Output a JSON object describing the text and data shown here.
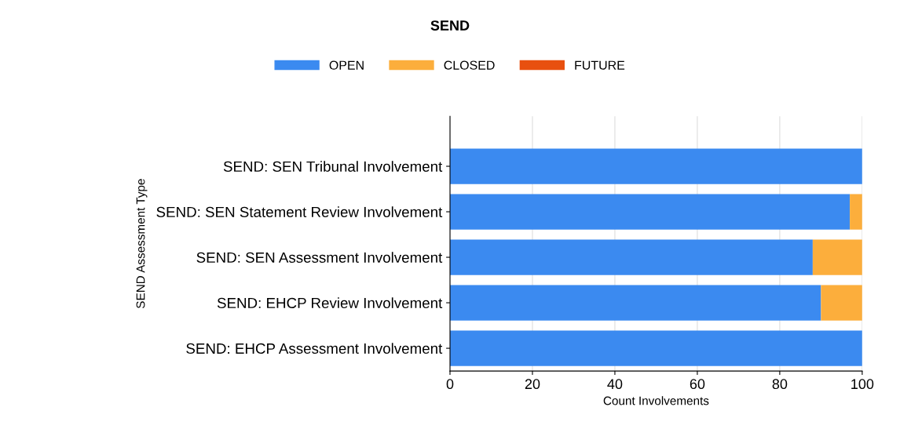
{
  "chart_data": {
    "type": "bar",
    "orientation": "horizontal",
    "stacked": true,
    "title": "SEND",
    "xlabel": "Count Involvements",
    "ylabel": "SEND Assessment Type",
    "categories": [
      "SEND: SEN Tribunal Involvement",
      "SEND: SEN Statement Review Involvement",
      "SEND: SEN Assessment Involvement",
      "SEND: EHCP Review Involvement",
      "SEND: EHCP Assessment Involvement"
    ],
    "series": [
      {
        "name": "OPEN",
        "color": "#3b8af0",
        "values": [
          100,
          97,
          88,
          90,
          100
        ]
      },
      {
        "name": "CLOSED",
        "color": "#fcae3c",
        "values": [
          0,
          3,
          12,
          10,
          0
        ]
      },
      {
        "name": "FUTURE",
        "color": "#e8500f",
        "values": [
          0,
          0,
          0,
          0,
          0
        ]
      }
    ],
    "xlim": [
      0,
      100
    ],
    "xticks": [
      0,
      20,
      40,
      60,
      80,
      100
    ],
    "grid": "x",
    "legend": "top"
  }
}
